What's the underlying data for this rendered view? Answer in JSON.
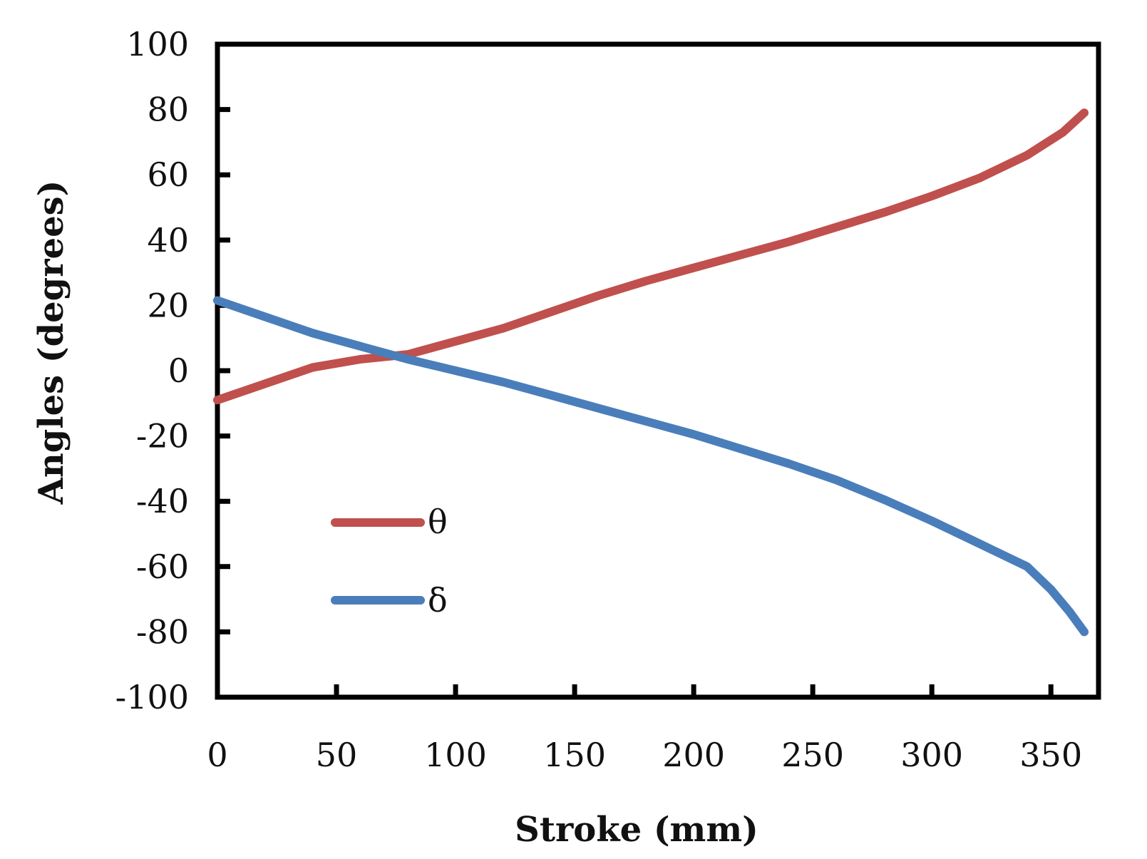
{
  "chart_data": {
    "type": "line",
    "title": "",
    "xlabel": "Stroke (mm)",
    "ylabel": "Angles (degrees)",
    "xlim": [
      0,
      370
    ],
    "ylim": [
      -100,
      100
    ],
    "x_ticks": [
      0,
      50,
      100,
      150,
      200,
      250,
      300,
      350
    ],
    "y_ticks": [
      100,
      80,
      60,
      40,
      20,
      0,
      -20,
      -40,
      -60,
      -80,
      -100
    ],
    "grid": false,
    "legend_position": "bottom-left",
    "series": [
      {
        "name": "θ",
        "color": "#c0504d",
        "x": [
          0,
          20,
          40,
          60,
          80,
          100,
          120,
          140,
          160,
          180,
          200,
          220,
          240,
          260,
          280,
          300,
          320,
          340,
          355,
          364
        ],
        "y": [
          -9,
          -4,
          1,
          3.5,
          5,
          9,
          13,
          18,
          23,
          27.5,
          31.5,
          35.5,
          39.5,
          44,
          48.5,
          53.5,
          59,
          66,
          73,
          79
        ]
      },
      {
        "name": "δ",
        "color": "#4a7ebb",
        "x": [
          0,
          20,
          40,
          60,
          80,
          100,
          120,
          140,
          160,
          180,
          200,
          220,
          240,
          260,
          280,
          300,
          320,
          340,
          350,
          358,
          364
        ],
        "y": [
          21.5,
          16.5,
          11.5,
          7.5,
          3.5,
          0,
          -3.5,
          -7.5,
          -11.5,
          -15.5,
          -19.5,
          -24,
          -28.5,
          -33.5,
          -39.5,
          -46,
          -53,
          -60,
          -67,
          -74,
          -80
        ]
      }
    ]
  }
}
